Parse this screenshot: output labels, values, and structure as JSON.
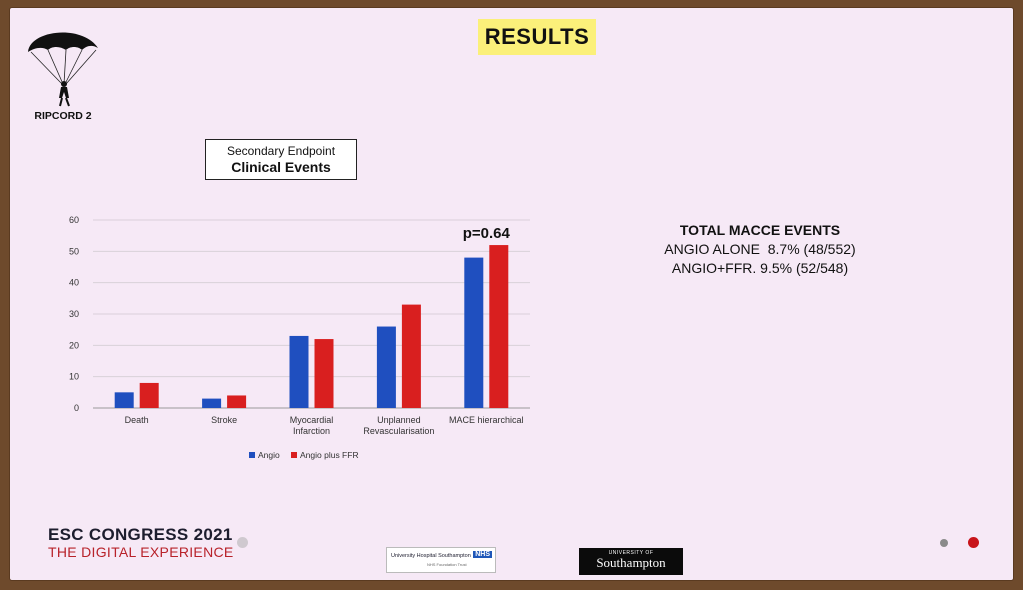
{
  "slide": {
    "title": "RESULTS",
    "trial_label": "RIPCORD 2",
    "endpoint": {
      "line1": "Secondary Endpoint",
      "line2": "Clinical Events"
    },
    "macce": {
      "title": "TOTAL MACCE EVENTS",
      "row1": "ANGIO ALONE  8.7% (48/552)",
      "row2": "ANGIO+FFR. 9.5% (52/548)"
    },
    "footer": {
      "congress": "ESC CONGRESS 2021",
      "experience": "THE DIGITAL EXPERIENCE",
      "hospital_name": "University Hospital Southampton",
      "hospital_badge": "NHS",
      "hospital_sub": "NHS Foundation Trust",
      "university_small": "UNIVERSITY OF",
      "university_big": "Southampton"
    },
    "colors": {
      "angio": "#1f4fbf",
      "angio_ffr": "#d91f1f",
      "title_bg": "#fbf07a",
      "esc_red": "#b8222a"
    }
  },
  "chart_data": {
    "type": "bar",
    "categories": [
      "Death",
      "Stroke",
      "Myocardial Infarction",
      "Unplanned Revascularisation",
      "MACE hierarchical"
    ],
    "category_lines": [
      [
        "Death"
      ],
      [
        "Stroke"
      ],
      [
        "Myocardial",
        "Infarction"
      ],
      [
        "Unplanned",
        "Revascularisation"
      ],
      [
        "MACE hierarchical"
      ]
    ],
    "series": [
      {
        "name": "Angio",
        "values": [
          5,
          3,
          23,
          26,
          48
        ],
        "color": "#1f4fbf"
      },
      {
        "name": "Angio plus FFR",
        "values": [
          8,
          4,
          22,
          33,
          52
        ],
        "color": "#d91f1f"
      }
    ],
    "ylim": [
      0,
      60
    ],
    "yticks": [
      0,
      10,
      20,
      30,
      40,
      50,
      60
    ],
    "ytick_labels": [
      "0",
      "10",
      "20",
      "30",
      "40",
      "50",
      "60"
    ],
    "grid": true,
    "legend_position": "bottom",
    "annotation": {
      "text": "p=0.64",
      "category_index": 4
    }
  }
}
